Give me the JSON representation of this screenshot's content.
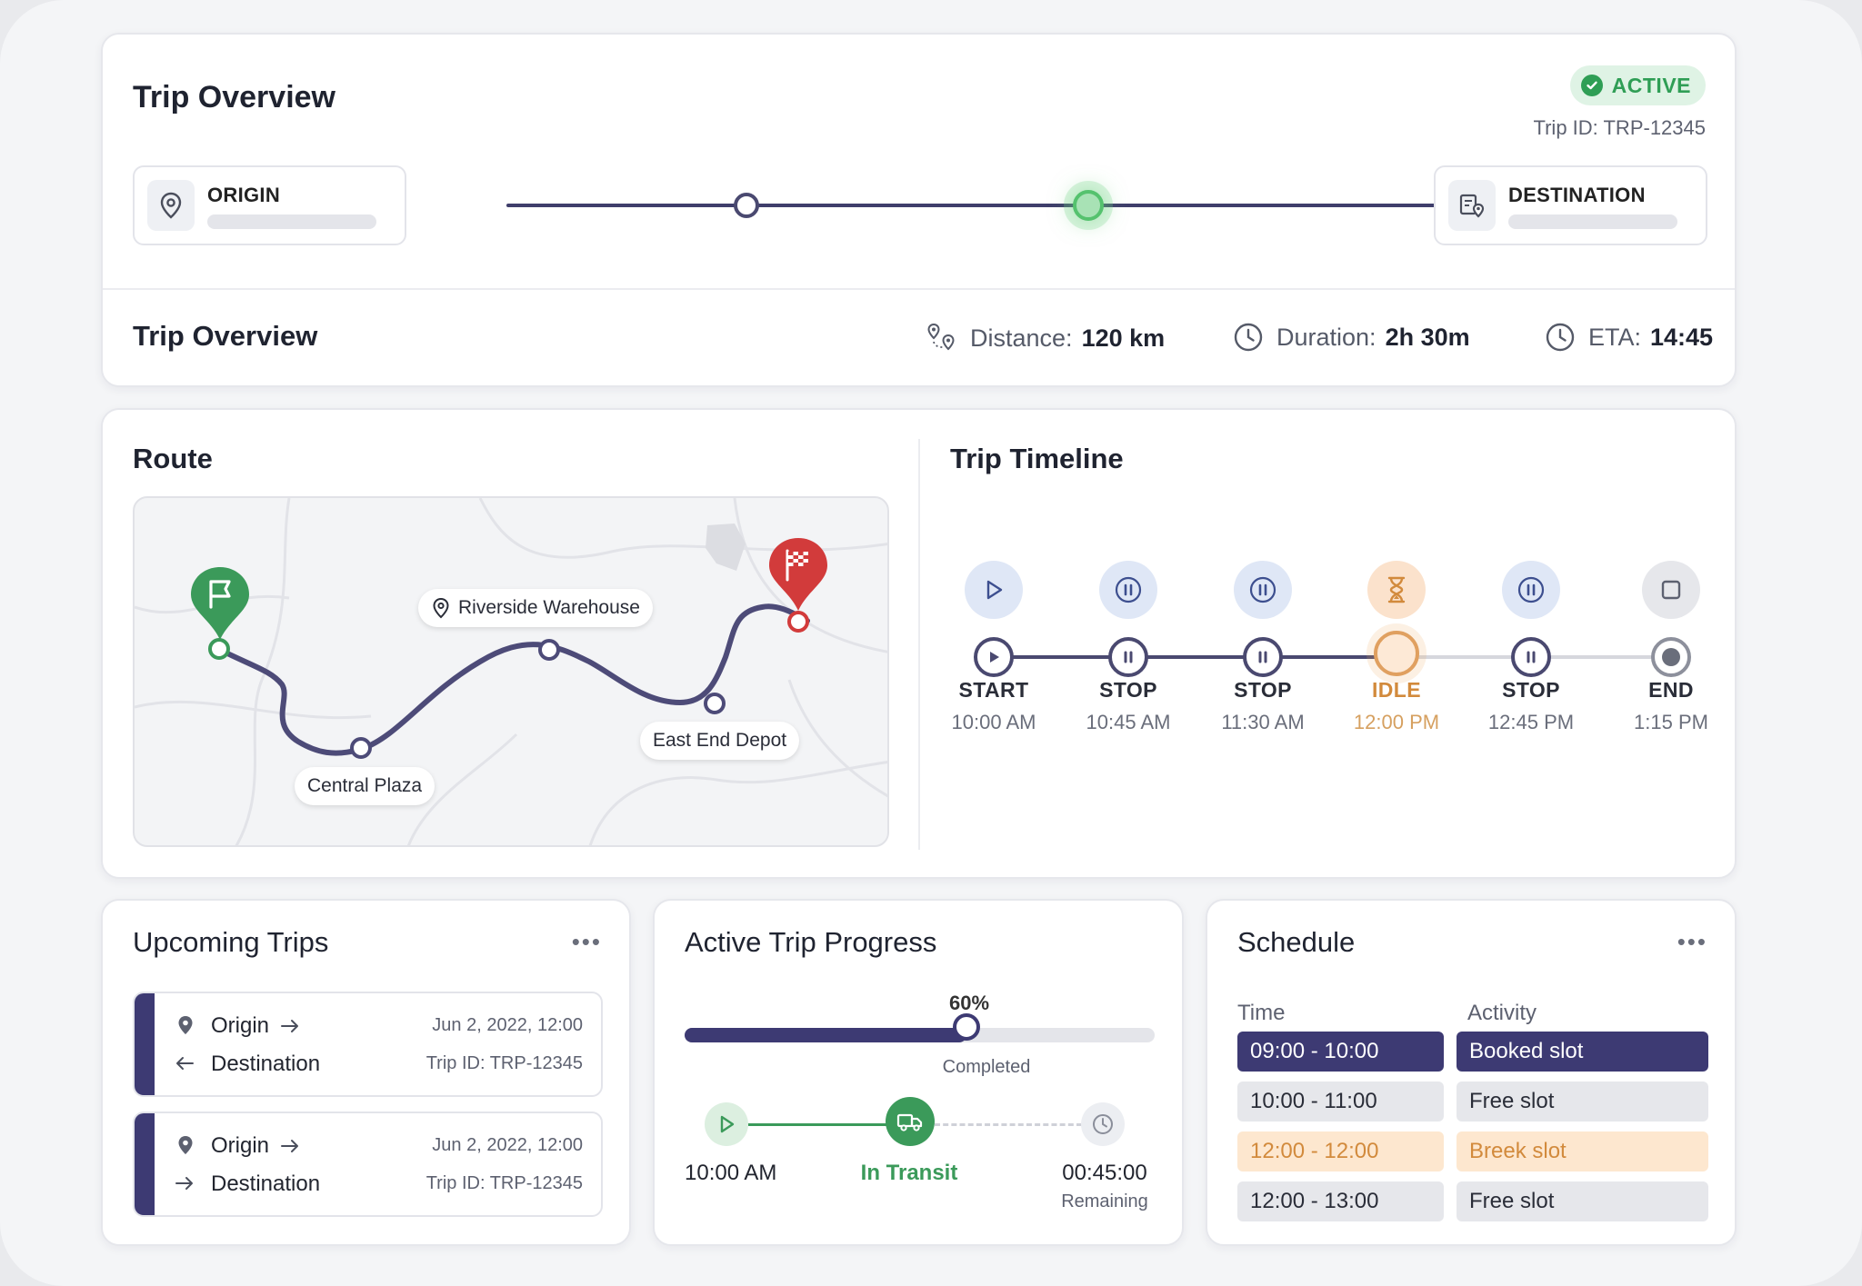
{
  "overview": {
    "title": "Trip Overview",
    "status": "ACTIVE",
    "trip_id": "Trip ID: TRP-12345",
    "origin_label": "ORIGIN",
    "destination_label": "DESTINATION",
    "summary_title": "Trip Overview",
    "distance_label": "Distance:",
    "distance_value": "120 km",
    "duration_label": "Duration:",
    "duration_value": "2h 30m",
    "eta_label": "ETA:",
    "eta_value": "14:45"
  },
  "route": {
    "title": "Route",
    "labels": {
      "warehouse": "Riverside Warehouse",
      "plaza": "Central Plaza",
      "depot": "East End Depot"
    }
  },
  "timeline": {
    "title": "Trip Timeline",
    "steps": [
      {
        "label": "START",
        "time": "10:00 AM",
        "icon": "play-icon"
      },
      {
        "label": "STOP",
        "time": "10:45 AM",
        "icon": "pause-icon"
      },
      {
        "label": "STOP",
        "time": "11:30 AM",
        "icon": "pause-icon"
      },
      {
        "label": "IDLE",
        "time": "12:00 PM",
        "icon": "hourglass-icon"
      },
      {
        "label": "STOP",
        "time": "12:45 PM",
        "icon": "pause-icon"
      },
      {
        "label": "END",
        "time": "1:15 PM",
        "icon": "stop-icon"
      }
    ],
    "colors": {
      "active": "#4a4970",
      "idle": "#d6a060",
      "pending": "#d6d7dd"
    }
  },
  "upcoming": {
    "title": "Upcoming Trips",
    "trips": [
      {
        "origin": "Origin",
        "destination": "Destination",
        "date": "Jun 2, 2022, 12:00",
        "trip_id": "Trip ID: TRP-12345"
      },
      {
        "origin": "Origin",
        "destination": "Destination",
        "date": "Jun 2, 2022, 12:00",
        "trip_id": "Trip ID: TRP-12345"
      }
    ]
  },
  "progress": {
    "title": "Active Trip Progress",
    "percent_label": "60%",
    "percent": 60,
    "completed_label": "Completed",
    "start_time": "10:00 AM",
    "status": "In Transit",
    "remaining_time": "00:45:00",
    "remaining_label": "Remaining"
  },
  "schedule": {
    "title": "Schedule",
    "col_time": "Time",
    "col_activity": "Activity",
    "rows": [
      {
        "time": "09:00 - 10:00",
        "activity": "Booked slot",
        "kind": "booked"
      },
      {
        "time": "10:00 - 11:00",
        "activity": "Free slot",
        "kind": "free"
      },
      {
        "time": "12:00 - 12:00",
        "activity": "Breek slot",
        "kind": "break"
      },
      {
        "time": "12:00 - 13:00",
        "activity": "Free slot",
        "kind": "free"
      }
    ]
  },
  "theme": {
    "accent": "#3d3a73",
    "success": "#3b9a5a",
    "warning": "#d28a3c",
    "danger": "#d23b3b"
  }
}
